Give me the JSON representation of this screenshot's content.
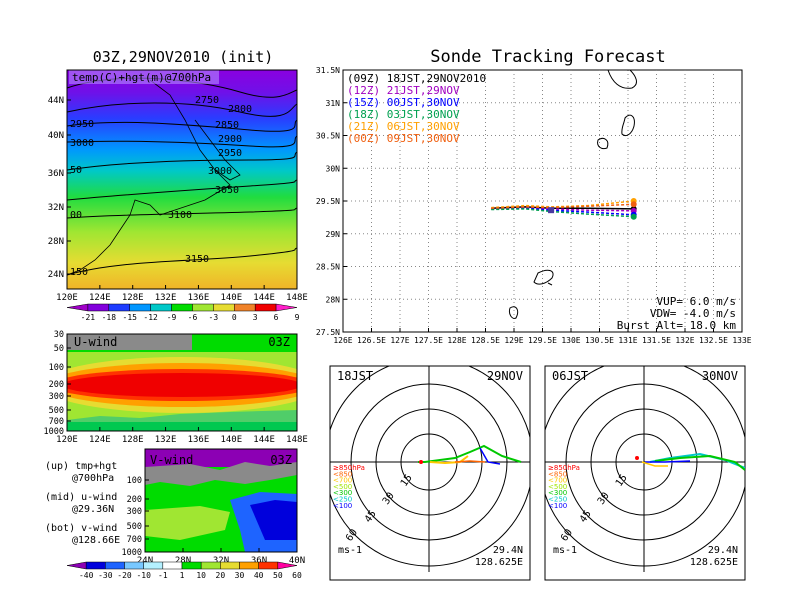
{
  "chart_data": [
    {
      "type": "heatmap",
      "title": "03Z,29NOV2010 (init)",
      "label": "temp(C)+hgt(m)@700hPa",
      "x_ticks": [
        "120E",
        "124E",
        "128E",
        "132E",
        "136E",
        "140E",
        "144E",
        "148E"
      ],
      "y_ticks": [
        "24N",
        "28N",
        "32N",
        "36N",
        "40N",
        "44N"
      ],
      "contour_labels": [
        "2750",
        "2800",
        "2850",
        "2900",
        "2950",
        "2950",
        "3000",
        "3000",
        "3050",
        "3100",
        "3150",
        "150",
        "50",
        "00"
      ],
      "colorbar_labels": [
        "-21",
        "-18",
        "-15",
        "-12",
        "-9",
        "-6",
        "-3",
        "0",
        "3",
        "6",
        "9"
      ],
      "colorbar_colors": [
        "#a000c8",
        "#8200dc",
        "#1e3cff",
        "#0096ff",
        "#00c8c8",
        "#00dc00",
        "#a0e632",
        "#e6dc32",
        "#f08228",
        "#f00000",
        "#ff1ec8"
      ]
    },
    {
      "type": "heatmap",
      "label": "U-wind",
      "time": "03Z",
      "y_ticks": [
        "30",
        "50",
        "100",
        "200",
        "300",
        "500",
        "700",
        "1000"
      ],
      "x_ticks": [
        "120E",
        "124E",
        "128E",
        "132E",
        "136E",
        "140E",
        "144E",
        "148E"
      ]
    },
    {
      "type": "heatmap",
      "label": "V-wind",
      "time": "03Z",
      "y_ticks": [
        "100",
        "200",
        "300",
        "500",
        "700",
        "1000"
      ],
      "x_ticks": [
        "24N",
        "28N",
        "32N",
        "36N",
        "40N"
      ],
      "colorbar_labels": [
        "-40",
        "-30",
        "-20",
        "-10",
        "-1",
        "1",
        "10",
        "20",
        "30",
        "40",
        "50",
        "60"
      ],
      "colorbar_colors": [
        "#8c00b4",
        "#0000dc",
        "#1e64ff",
        "#78c8ff",
        "#b4f0ff",
        "#ffffff",
        "#00dc00",
        "#a0e632",
        "#e6dc32",
        "#ffa000",
        "#ff3200",
        "#ff00a0"
      ]
    },
    {
      "type": "line",
      "title": "Sonde Tracking Forecast",
      "x_ticks": [
        "126E",
        "126.5E",
        "127E",
        "127.5E",
        "128E",
        "128.5E",
        "129E",
        "129.5E",
        "130E",
        "130.5E",
        "131E",
        "131.5E",
        "132E",
        "132.5E",
        "133E"
      ],
      "y_ticks": [
        "27.5N",
        "28N",
        "28.5N",
        "29N",
        "29.5N",
        "30N",
        "30.5N",
        "31N",
        "31.5N"
      ],
      "xlim": [
        126,
        133
      ],
      "ylim": [
        27.5,
        31.5
      ],
      "launch": {
        "lon": 129.65,
        "lat": 29.36
      },
      "series": [
        {
          "name": "(09Z)  18JST,29NOV2010",
          "color": "#000000",
          "x": [
            128.6,
            129.2,
            129.65,
            130.3,
            131.1
          ],
          "y": [
            29.39,
            29.41,
            29.39,
            29.39,
            29.38
          ]
        },
        {
          "name": "(12Z)  21JST,29NOV",
          "color": "#a000c0",
          "x": [
            128.6,
            129.2,
            129.65,
            130.3,
            131.1
          ],
          "y": [
            29.38,
            29.4,
            29.38,
            29.36,
            29.35
          ]
        },
        {
          "name": "(15Z)  00JST,30NOV",
          "color": "#0000ff",
          "x": [
            128.6,
            129.2,
            129.65,
            130.3,
            131.1
          ],
          "y": [
            29.38,
            29.39,
            29.36,
            29.33,
            29.29
          ]
        },
        {
          "name": "(18Z)  03JST,30NOV",
          "color": "#00a050",
          "x": [
            128.6,
            129.2,
            129.65,
            130.3,
            131.1
          ],
          "y": [
            29.37,
            29.38,
            29.34,
            29.3,
            29.26
          ]
        },
        {
          "name": "(21Z)  06JST,30NOV",
          "color": "#ffa000",
          "x": [
            128.6,
            129.2,
            129.65,
            130.3,
            131.1
          ],
          "y": [
            29.4,
            29.43,
            29.41,
            29.43,
            29.5
          ]
        },
        {
          "name": "(00Z)  09JST,30NOV",
          "color": "#f06010",
          "x": [
            128.6,
            129.2,
            129.65,
            130.3,
            131.1
          ],
          "y": [
            29.39,
            29.41,
            29.4,
            29.42,
            29.45
          ]
        }
      ],
      "info": [
        "VUP=  6.0  m/s",
        "VDW= -4.0  m/s",
        "Burst Alt= 18.0  km"
      ]
    },
    {
      "type": "line",
      "panel_time": "18JST",
      "panel_date": "29NOV",
      "rings": [
        "15",
        "30",
        "45",
        "60"
      ],
      "unit": "ms-1",
      "location": [
        "29.4N",
        "128.625E"
      ],
      "pressure_legend": [
        "≥850hPa",
        "<850",
        "<700",
        "<500",
        "<300",
        "<250",
        "<100"
      ],
      "pressure_colors": [
        "#ff0000",
        "#ff6400",
        "#ffc800",
        "#a0e600",
        "#00c800",
        "#00c8c8",
        "#0000ff"
      ]
    },
    {
      "type": "line",
      "panel_time": "06JST",
      "panel_date": "30NOV",
      "rings": [
        "15",
        "30",
        "45",
        "60"
      ],
      "unit": "ms-1",
      "location": [
        "29.4N",
        "128.625E"
      ]
    }
  ],
  "side_notes": [
    {
      "title": "(up) tmp+hgt",
      "sub": "@700hPa"
    },
    {
      "title": "(mid) u-wind",
      "sub": "@29.36N"
    },
    {
      "title": "(bot) v-wind",
      "sub": "@128.66E"
    }
  ]
}
